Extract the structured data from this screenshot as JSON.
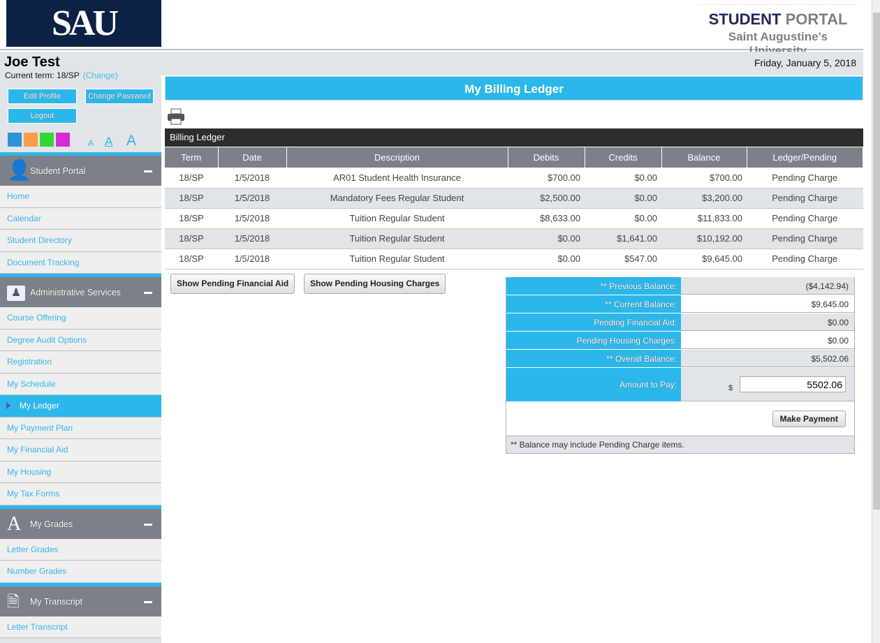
{
  "header": {
    "logo_text": "SAU",
    "brand_part1": "STUDENT",
    "brand_part2": "PORTAL",
    "university": "Saint Augustine's University",
    "date": "Friday, January 5, 2018"
  },
  "user": {
    "name": "Joe Test",
    "term_label": "Current term: 18/SP",
    "change_link": "(Change)",
    "edit_profile": "Edit Profile",
    "change_password": "Change Password",
    "logout": "Logout",
    "theme_colors": [
      "#2b95d6",
      "#fb9b4c",
      "#35d62f",
      "#d62bd6"
    ],
    "font_sizes": [
      "A",
      "A",
      "A"
    ]
  },
  "sidebar": [
    {
      "title": "Student Portal",
      "icon": "user-icon",
      "items": [
        "Home",
        "Calendar",
        "Student Directory",
        "Document Tracking"
      ]
    },
    {
      "title": "Administrative Services",
      "icon": "admin-folder-icon",
      "items": [
        "Course Offering",
        "Degree Audit Options",
        "Registration",
        "My Schedule",
        "My Ledger",
        "My Payment Plan",
        "My Financial Aid",
        "My Housing",
        "My Tax Forms"
      ]
    },
    {
      "title": "My Grades",
      "icon": "letter-a-icon",
      "items": [
        "Letter Grades",
        "Number Grades"
      ]
    },
    {
      "title": "My Transcript",
      "icon": "document-icon",
      "items": [
        "Letter Transcript"
      ]
    }
  ],
  "active_item": "My Ledger",
  "main": {
    "title": "My Billing Ledger",
    "ledger_header": "Billing Ledger",
    "columns": [
      "Term",
      "Date",
      "Description",
      "Debits",
      "Credits",
      "Balance",
      "Ledger/Pending"
    ],
    "rows": [
      [
        "18/SP",
        "1/5/2018",
        "AR01 Student Health Insurance",
        "$700.00",
        "$0.00",
        "$700.00",
        "Pending Charge"
      ],
      [
        "18/SP",
        "1/5/2018",
        "Mandatory Fees Regular Student",
        "$2,500.00",
        "$0.00",
        "$3,200.00",
        "Pending Charge"
      ],
      [
        "18/SP",
        "1/5/2018",
        "Tuition Regular Student",
        "$8,633.00",
        "$0.00",
        "$11,833.00",
        "Pending Charge"
      ],
      [
        "18/SP",
        "1/5/2018",
        "Tuition Regular Student",
        "$0.00",
        "$1,641.00",
        "$10,192.00",
        "Pending Charge"
      ],
      [
        "18/SP",
        "1/5/2018",
        "Tuition Regular Student",
        "$0.00",
        "$547.00",
        "$9,645.00",
        "Pending Charge"
      ]
    ],
    "show_aid": "Show Pending Financial Aid",
    "show_housing": "Show Pending Housing Charges",
    "summary": [
      {
        "label": "** Previous Balance:",
        "value": "($4,142.94)"
      },
      {
        "label": "** Current Balance:",
        "value": "$9,645.00"
      },
      {
        "label": "Pending Financial Aid:",
        "value": "$0.00"
      },
      {
        "label": "Pending Housing Charges:",
        "value": "$0.00"
      },
      {
        "label": "** Overall Balance:",
        "value": "$5,502.06"
      }
    ],
    "amount_label": "Amount to Pay:",
    "currency": "$",
    "amount_value": "5502.06",
    "make_payment": "Make Payment",
    "note": "** Balance may include Pending Charge items."
  }
}
